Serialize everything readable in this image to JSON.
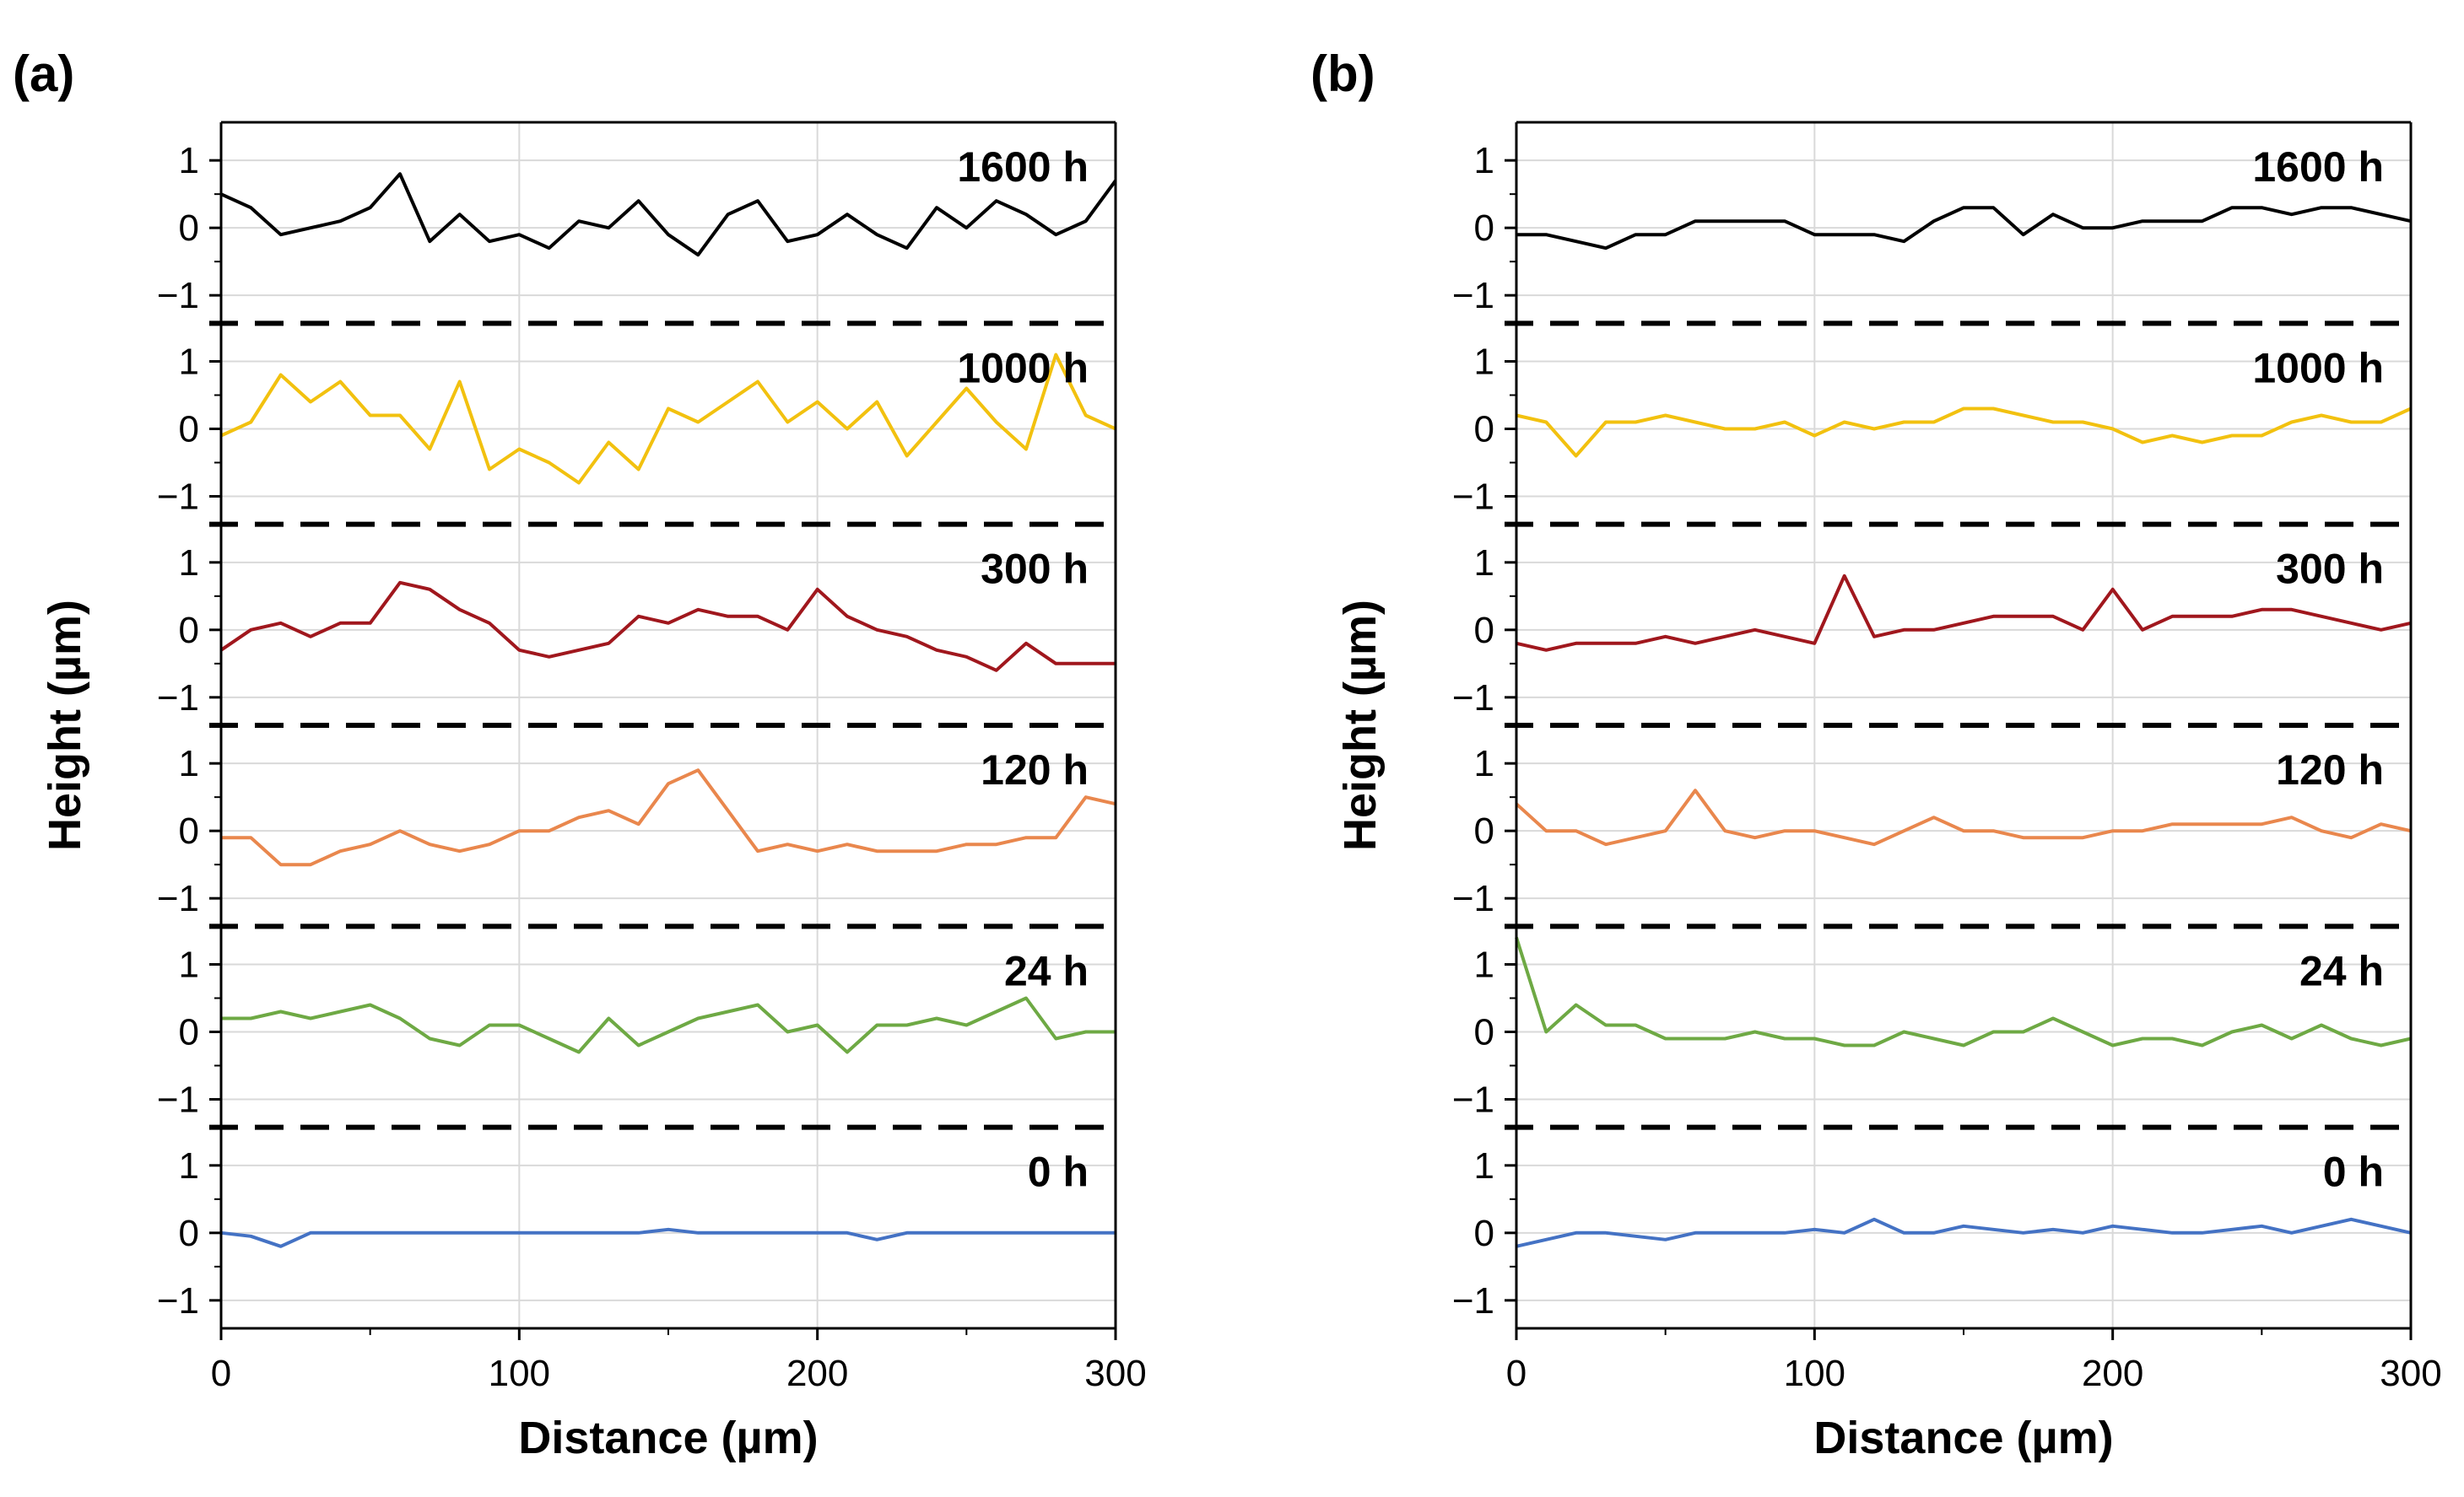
{
  "chart_data": [
    {
      "type": "line",
      "panel_label": "(a)",
      "xlabel": "Distance (µm)",
      "ylabel": "Height (µm)",
      "xlim": [
        0,
        300
      ],
      "ylim": [
        -1,
        1
      ],
      "x_ticks": [
        "0",
        "100",
        "200",
        "300"
      ],
      "y_ticks": [
        "1",
        "0",
        "−1"
      ],
      "grid": true,
      "x": [
        0,
        10,
        20,
        30,
        40,
        50,
        60,
        70,
        80,
        90,
        100,
        110,
        120,
        130,
        140,
        150,
        160,
        170,
        180,
        190,
        200,
        210,
        220,
        230,
        240,
        250,
        260,
        270,
        280,
        290,
        300
      ],
      "series": [
        {
          "name": "1600 h",
          "color": "#000000",
          "values": [
            0.5,
            0.3,
            -0.1,
            0.0,
            0.1,
            0.3,
            0.8,
            -0.2,
            0.2,
            -0.2,
            -0.1,
            -0.3,
            0.1,
            0.0,
            0.4,
            -0.1,
            -0.4,
            0.2,
            0.4,
            -0.2,
            -0.1,
            0.2,
            -0.1,
            -0.3,
            0.3,
            0.0,
            0.4,
            0.2,
            -0.1,
            0.1,
            0.7
          ]
        },
        {
          "name": "1000 h",
          "color": "#f2c10f",
          "values": [
            -0.1,
            0.1,
            0.8,
            0.4,
            0.7,
            0.2,
            0.2,
            -0.3,
            0.7,
            -0.6,
            -0.3,
            -0.5,
            -0.8,
            -0.2,
            -0.6,
            0.3,
            0.1,
            0.4,
            0.7,
            0.1,
            0.4,
            0.0,
            0.4,
            -0.4,
            0.1,
            0.6,
            0.1,
            -0.3,
            1.1,
            0.2,
            0.0
          ]
        },
        {
          "name": "300 h",
          "color": "#a0171d",
          "values": [
            -0.3,
            0.0,
            0.1,
            -0.1,
            0.1,
            0.1,
            0.7,
            0.6,
            0.3,
            0.1,
            -0.3,
            -0.4,
            -0.3,
            -0.2,
            0.2,
            0.1,
            0.3,
            0.2,
            0.2,
            0.0,
            0.6,
            0.2,
            0.0,
            -0.1,
            -0.3,
            -0.4,
            -0.6,
            -0.2,
            -0.5,
            -0.5,
            -0.5
          ]
        },
        {
          "name": "120 h",
          "color": "#e9874d",
          "values": [
            -0.1,
            -0.1,
            -0.5,
            -0.5,
            -0.3,
            -0.2,
            0.0,
            -0.2,
            -0.3,
            -0.2,
            0.0,
            0.0,
            0.2,
            0.3,
            0.1,
            0.7,
            0.9,
            0.3,
            -0.3,
            -0.2,
            -0.3,
            -0.2,
            -0.3,
            -0.3,
            -0.3,
            -0.2,
            -0.2,
            -0.1,
            -0.1,
            0.5,
            0.4
          ]
        },
        {
          "name": "24 h",
          "color": "#6ea944",
          "values": [
            0.2,
            0.2,
            0.3,
            0.2,
            0.3,
            0.4,
            0.2,
            -0.1,
            -0.2,
            0.1,
            0.1,
            -0.1,
            -0.3,
            0.2,
            -0.2,
            0.0,
            0.2,
            0.3,
            0.4,
            0.0,
            0.1,
            -0.3,
            0.1,
            0.1,
            0.2,
            0.1,
            0.3,
            0.5,
            -0.1,
            0.0,
            0.0
          ]
        },
        {
          "name": "0 h",
          "color": "#4472c4",
          "values": [
            0.0,
            -0.05,
            -0.2,
            0.0,
            0.0,
            0.0,
            0.0,
            0.0,
            0.0,
            0.0,
            0.0,
            0.0,
            0.0,
            0.0,
            0.0,
            0.05,
            0.0,
            0.0,
            0.0,
            0.0,
            0.0,
            0.0,
            -0.1,
            0.0,
            0.0,
            0.0,
            0.0,
            0.0,
            0.0,
            0.0,
            0.0
          ]
        }
      ]
    },
    {
      "type": "line",
      "panel_label": "(b)",
      "xlabel": "Distance (µm)",
      "ylabel": "Height (µm)",
      "xlim": [
        0,
        300
      ],
      "ylim": [
        -1,
        1
      ],
      "x_ticks": [
        "0",
        "100",
        "200",
        "300"
      ],
      "y_ticks": [
        "1",
        "0",
        "−1"
      ],
      "grid": true,
      "x": [
        0,
        10,
        20,
        30,
        40,
        50,
        60,
        70,
        80,
        90,
        100,
        110,
        120,
        130,
        140,
        150,
        160,
        170,
        180,
        190,
        200,
        210,
        220,
        230,
        240,
        250,
        260,
        270,
        280,
        290,
        300
      ],
      "series": [
        {
          "name": "1600 h",
          "color": "#000000",
          "values": [
            -0.1,
            -0.1,
            -0.2,
            -0.3,
            -0.1,
            -0.1,
            0.1,
            0.1,
            0.1,
            0.1,
            -0.1,
            -0.1,
            -0.1,
            -0.2,
            0.1,
            0.3,
            0.3,
            -0.1,
            0.2,
            0.0,
            0.0,
            0.1,
            0.1,
            0.1,
            0.3,
            0.3,
            0.2,
            0.3,
            0.3,
            0.2,
            0.1
          ]
        },
        {
          "name": "1000 h",
          "color": "#f2c10f",
          "values": [
            0.2,
            0.1,
            -0.4,
            0.1,
            0.1,
            0.2,
            0.1,
            0.0,
            0.0,
            0.1,
            -0.1,
            0.1,
            0.0,
            0.1,
            0.1,
            0.3,
            0.3,
            0.2,
            0.1,
            0.1,
            0.0,
            -0.2,
            -0.1,
            -0.2,
            -0.1,
            -0.1,
            0.1,
            0.2,
            0.1,
            0.1,
            0.3
          ]
        },
        {
          "name": "300 h",
          "color": "#a0171d",
          "values": [
            -0.2,
            -0.3,
            -0.2,
            -0.2,
            -0.2,
            -0.1,
            -0.2,
            -0.1,
            0.0,
            -0.1,
            -0.2,
            0.8,
            -0.1,
            0.0,
            0.0,
            0.1,
            0.2,
            0.2,
            0.2,
            0.0,
            0.6,
            0.0,
            0.2,
            0.2,
            0.2,
            0.3,
            0.3,
            0.2,
            0.1,
            0.0,
            0.1
          ]
        },
        {
          "name": "120 h",
          "color": "#e9874d",
          "values": [
            0.4,
            0.0,
            0.0,
            -0.2,
            -0.1,
            0.0,
            0.6,
            0.0,
            -0.1,
            0.0,
            0.0,
            -0.1,
            -0.2,
            0.0,
            0.2,
            0.0,
            0.0,
            -0.1,
            -0.1,
            -0.1,
            0.0,
            0.0,
            0.1,
            0.1,
            0.1,
            0.1,
            0.2,
            0.0,
            -0.1,
            0.1,
            0.0
          ]
        },
        {
          "name": "24 h",
          "color": "#6ea944",
          "values": [
            1.4,
            0.0,
            0.4,
            0.1,
            0.1,
            -0.1,
            -0.1,
            -0.1,
            0.0,
            -0.1,
            -0.1,
            -0.2,
            -0.2,
            0.0,
            -0.1,
            -0.2,
            0.0,
            0.0,
            0.2,
            0.0,
            -0.2,
            -0.1,
            -0.1,
            -0.2,
            0.0,
            0.1,
            -0.1,
            0.1,
            -0.1,
            -0.2,
            -0.1
          ]
        },
        {
          "name": "0 h",
          "color": "#4472c4",
          "values": [
            -0.2,
            -0.1,
            0.0,
            0.0,
            -0.05,
            -0.1,
            0.0,
            0.0,
            0.0,
            0.0,
            0.05,
            0.0,
            0.2,
            0.0,
            0.0,
            0.1,
            0.05,
            0.0,
            0.05,
            0.0,
            0.1,
            0.05,
            0.0,
            0.0,
            0.05,
            0.1,
            0.0,
            0.1,
            0.2,
            0.1,
            0.0
          ]
        }
      ]
    }
  ]
}
